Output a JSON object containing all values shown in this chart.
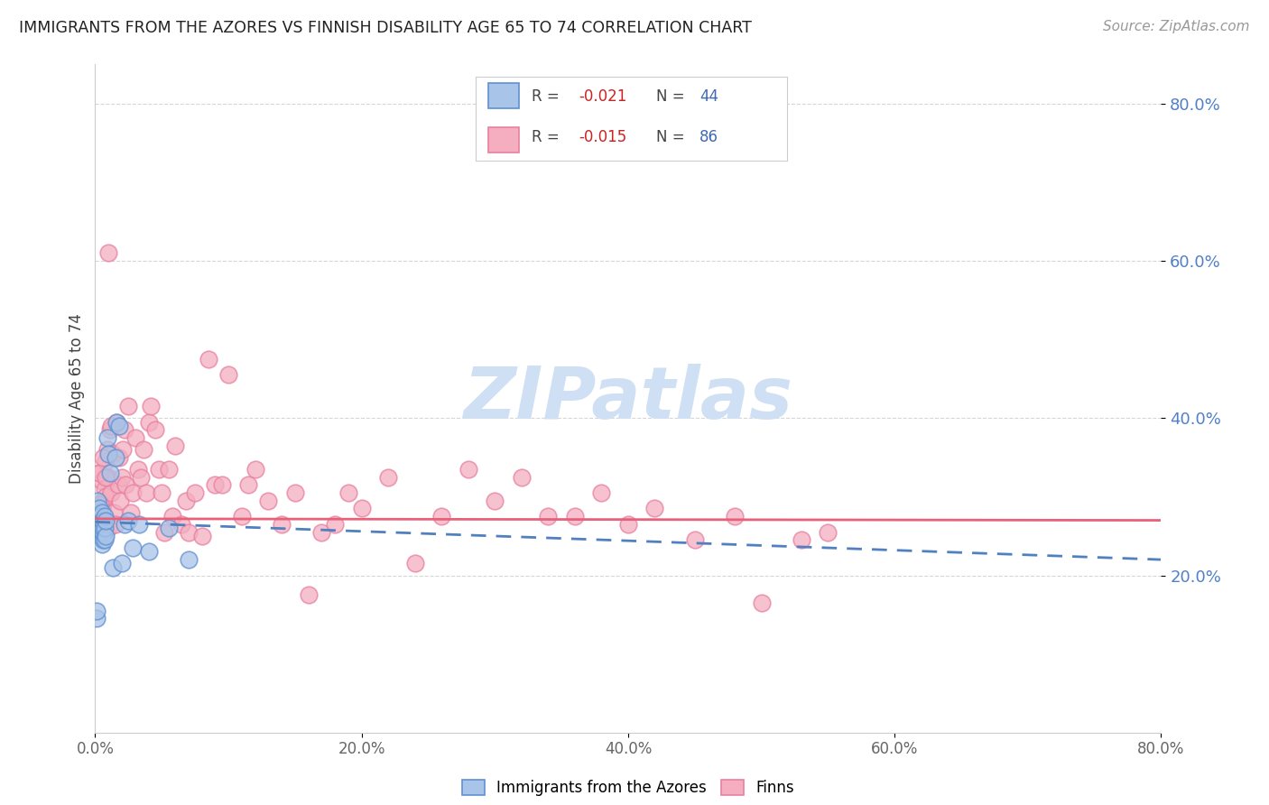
{
  "title": "IMMIGRANTS FROM THE AZORES VS FINNISH DISABILITY AGE 65 TO 74 CORRELATION CHART",
  "source": "Source: ZipAtlas.com",
  "ylabel": "Disability Age 65 to 74",
  "xlim": [
    0.0,
    0.8
  ],
  "ylim": [
    0.0,
    0.85
  ],
  "x_ticks": [
    0.0,
    0.2,
    0.4,
    0.6,
    0.8
  ],
  "x_tick_labels": [
    "0.0%",
    "20.0%",
    "40.0%",
    "60.0%",
    "80.0%"
  ],
  "y_tick_right": [
    0.2,
    0.4,
    0.6,
    0.8
  ],
  "y_tick_right_labels": [
    "20.0%",
    "40.0%",
    "60.0%",
    "80.0%"
  ],
  "grid_color": "#cccccc",
  "background_color": "#ffffff",
  "legend_azores_r": "-0.021",
  "legend_azores_n": "44",
  "legend_finns_r": "-0.015",
  "legend_finns_n": "86",
  "azores_color": "#a8c4e8",
  "finns_color": "#f4aec0",
  "azores_edge_color": "#6090d0",
  "finns_edge_color": "#e880a0",
  "azores_line_color": "#5080c0",
  "finns_line_color": "#e8607a",
  "watermark": "ZIPatlas",
  "watermark_color": "#d0e0f4",
  "azores_x": [
    0.001,
    0.001,
    0.002,
    0.002,
    0.002,
    0.003,
    0.003,
    0.003,
    0.003,
    0.004,
    0.004,
    0.004,
    0.004,
    0.004,
    0.005,
    0.005,
    0.005,
    0.005,
    0.005,
    0.005,
    0.006,
    0.006,
    0.006,
    0.006,
    0.007,
    0.007,
    0.007,
    0.008,
    0.008,
    0.009,
    0.01,
    0.011,
    0.013,
    0.015,
    0.016,
    0.018,
    0.02,
    0.022,
    0.025,
    0.028,
    0.033,
    0.04,
    0.055,
    0.07
  ],
  "azores_y": [
    0.145,
    0.155,
    0.27,
    0.28,
    0.295,
    0.25,
    0.26,
    0.27,
    0.285,
    0.25,
    0.26,
    0.265,
    0.27,
    0.275,
    0.24,
    0.25,
    0.255,
    0.26,
    0.27,
    0.28,
    0.245,
    0.255,
    0.26,
    0.27,
    0.245,
    0.26,
    0.275,
    0.25,
    0.27,
    0.375,
    0.355,
    0.33,
    0.21,
    0.35,
    0.395,
    0.39,
    0.215,
    0.265,
    0.27,
    0.235,
    0.265,
    0.23,
    0.26,
    0.22
  ],
  "finns_x": [
    0.002,
    0.003,
    0.004,
    0.005,
    0.005,
    0.006,
    0.006,
    0.007,
    0.007,
    0.008,
    0.008,
    0.009,
    0.01,
    0.01,
    0.011,
    0.012,
    0.013,
    0.014,
    0.015,
    0.016,
    0.017,
    0.018,
    0.019,
    0.02,
    0.021,
    0.022,
    0.023,
    0.025,
    0.027,
    0.028,
    0.03,
    0.032,
    0.034,
    0.036,
    0.038,
    0.04,
    0.042,
    0.045,
    0.048,
    0.05,
    0.052,
    0.055,
    0.058,
    0.06,
    0.065,
    0.068,
    0.07,
    0.075,
    0.08,
    0.085,
    0.09,
    0.095,
    0.1,
    0.11,
    0.115,
    0.12,
    0.13,
    0.14,
    0.15,
    0.16,
    0.17,
    0.18,
    0.19,
    0.2,
    0.22,
    0.24,
    0.26,
    0.28,
    0.3,
    0.32,
    0.34,
    0.36,
    0.38,
    0.4,
    0.42,
    0.45,
    0.48,
    0.5,
    0.53,
    0.55,
    0.003,
    0.004,
    0.006,
    0.008,
    0.01,
    0.012
  ],
  "finns_y": [
    0.27,
    0.33,
    0.26,
    0.285,
    0.32,
    0.295,
    0.29,
    0.265,
    0.31,
    0.345,
    0.3,
    0.36,
    0.26,
    0.325,
    0.385,
    0.305,
    0.355,
    0.28,
    0.265,
    0.395,
    0.315,
    0.35,
    0.295,
    0.325,
    0.36,
    0.385,
    0.315,
    0.415,
    0.28,
    0.305,
    0.375,
    0.335,
    0.325,
    0.36,
    0.305,
    0.395,
    0.415,
    0.385,
    0.335,
    0.305,
    0.255,
    0.335,
    0.275,
    0.365,
    0.265,
    0.295,
    0.255,
    0.305,
    0.25,
    0.475,
    0.315,
    0.315,
    0.455,
    0.275,
    0.315,
    0.335,
    0.295,
    0.265,
    0.305,
    0.175,
    0.255,
    0.265,
    0.305,
    0.285,
    0.325,
    0.215,
    0.275,
    0.335,
    0.295,
    0.325,
    0.275,
    0.275,
    0.305,
    0.265,
    0.285,
    0.245,
    0.275,
    0.165,
    0.245,
    0.255,
    0.33,
    0.29,
    0.35,
    0.325,
    0.61,
    0.39
  ]
}
